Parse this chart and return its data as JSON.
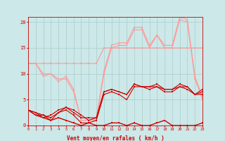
{
  "x": [
    0,
    1,
    2,
    3,
    4,
    5,
    6,
    7,
    8,
    9,
    10,
    11,
    12,
    13,
    14,
    15,
    16,
    17,
    18,
    19,
    20,
    21,
    22,
    23
  ],
  "line_light_upper": [
    12,
    12,
    12,
    12,
    12,
    12,
    12,
    12,
    12,
    12,
    15,
    15,
    15,
    15,
    15,
    15,
    15,
    15,
    15,
    15,
    15,
    15,
    15,
    15
  ],
  "line_light_mid1": [
    12,
    12,
    10,
    10,
    9,
    9,
    6.5,
    1,
    1,
    1,
    10,
    15,
    15.5,
    15.5,
    18.5,
    18.5,
    15,
    17.5,
    15,
    15,
    20.5,
    20,
    9,
    5
  ],
  "line_light_mid2": [
    12,
    12,
    9.5,
    10,
    8.5,
    9.5,
    7,
    1,
    1,
    1.5,
    10.5,
    15.5,
    16,
    16,
    19,
    19,
    15.5,
    17.5,
    15.5,
    15.5,
    21,
    20.5,
    9.5,
    5.5
  ],
  "line_dark_spread": [
    3,
    2.5,
    1.5,
    2,
    3,
    3.5,
    3,
    2,
    1,
    1.5,
    6.5,
    7,
    6.5,
    6,
    8,
    7.5,
    7.5,
    7.5,
    7,
    7,
    7.5,
    7.5,
    6,
    6.5
  ],
  "line_dark_avg1": [
    3,
    2,
    2,
    1,
    2.5,
    3,
    2,
    0.5,
    0.5,
    1,
    6,
    6.5,
    6,
    5,
    7.5,
    7.5,
    7,
    7.5,
    6.5,
    6.5,
    7.5,
    7,
    6,
    6
  ],
  "line_dark_avg2": [
    3,
    2.5,
    2,
    1.5,
    2.5,
    3.5,
    2.5,
    1.5,
    1.5,
    1.5,
    6.5,
    7,
    6.5,
    6,
    8,
    7.5,
    7.5,
    8,
    7,
    7,
    8,
    7.5,
    6,
    7
  ],
  "line_dark_min": [
    3,
    2,
    1.5,
    1,
    1.5,
    1,
    0.5,
    0,
    0.5,
    0,
    0,
    0.5,
    0.5,
    0,
    0.5,
    0,
    0,
    0.5,
    1,
    0,
    0,
    0,
    0,
    0.5
  ],
  "bg_color": "#cce8e8",
  "grid_color": "#aacccc",
  "line_dark_color": "#cc0000",
  "line_light_color": "#ff9999",
  "xlabel": "Vent moyen/en rafales ( km/h )",
  "ylim": [
    0,
    21
  ],
  "xlim": [
    0,
    23
  ],
  "yticks": [
    0,
    5,
    10,
    15,
    20
  ]
}
